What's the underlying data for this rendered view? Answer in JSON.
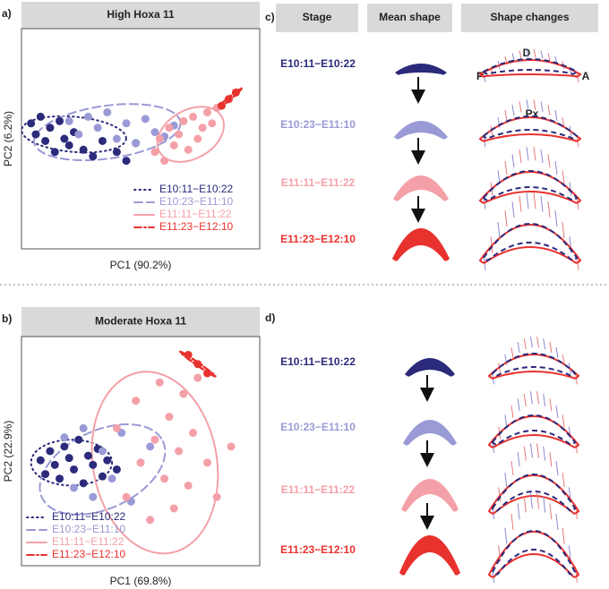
{
  "chart_data": [
    {
      "type": "scatter",
      "panel_label": "a)",
      "title": "High Hoxa 11",
      "x_label": "PC1 (90.2%)",
      "y_label": "PC2 (6.2%)",
      "xlim": [
        0,
        100
      ],
      "ylim": [
        0,
        100
      ],
      "series": [
        {
          "name": "E10:11−E10:22",
          "color": "#2b2a7b",
          "line_style": "dotted",
          "x": [
            4,
            6,
            8,
            10,
            12,
            14,
            16,
            18,
            20,
            22,
            26,
            30,
            34,
            40,
            44,
            48
          ],
          "values": [
            57,
            52,
            60,
            49,
            55,
            44,
            58,
            50,
            47,
            53,
            45,
            42,
            49,
            44,
            40,
            48
          ],
          "ellipse": [
            22,
            52,
            22,
            8,
            -5
          ]
        },
        {
          "name": "E10:23−E11:10",
          "color": "#9a9ad6",
          "line_style": "dashed",
          "x": [
            20,
            24,
            28,
            32,
            36,
            40,
            44,
            48,
            52,
            56,
            60,
            64
          ],
          "values": [
            58,
            52,
            60,
            55,
            62,
            50,
            57,
            48,
            59,
            53,
            51,
            56
          ],
          "ellipse": [
            36,
            53,
            31,
            12,
            8
          ]
        },
        {
          "name": "E11:11−E11:22",
          "color": "#f4a0a8",
          "line_style": "solid",
          "x": [
            56,
            58,
            60,
            62,
            64,
            66,
            68,
            70,
            72,
            74,
            76,
            78,
            80,
            82
          ],
          "values": [
            44,
            50,
            40,
            55,
            47,
            52,
            58,
            45,
            60,
            50,
            55,
            62,
            57,
            64
          ],
          "ellipse": [
            71,
            52,
            15,
            11,
            30
          ]
        },
        {
          "name": "E11:23−E12:10",
          "color": "#e8322e",
          "line_style": "dotdash",
          "x": [
            84,
            87,
            90
          ],
          "values": [
            65,
            68,
            71
          ],
          "ellipse": [
            87,
            68,
            7,
            0.6,
            40
          ]
        }
      ]
    },
    {
      "type": "scatter",
      "panel_label": "b)",
      "title": "Moderate Hoxa 11",
      "x_label": "PC1 (69.8%)",
      "y_label": "PC2 (22.9%)",
      "xlim": [
        0,
        100
      ],
      "ylim": [
        0,
        100
      ],
      "series": [
        {
          "name": "E10:11−E10:22",
          "color": "#2b2a7b",
          "line_style": "dotted",
          "x": [
            8,
            10,
            12,
            14,
            16,
            18,
            20,
            22,
            24,
            26,
            28,
            30,
            32,
            34,
            36,
            40
          ],
          "values": [
            46,
            40,
            50,
            44,
            38,
            52,
            47,
            42,
            55,
            36,
            48,
            44,
            51,
            39,
            46,
            42
          ],
          "ellipse": [
            21,
            45,
            17,
            10,
            0
          ]
        },
        {
          "name": "E10:23−E11:10",
          "color": "#9a9ad6",
          "line_style": "dashed",
          "x": [
            18,
            22,
            26,
            30,
            34,
            38,
            42,
            46,
            50,
            54
          ],
          "values": [
            56,
            34,
            60,
            30,
            50,
            38,
            58,
            28,
            45,
            52
          ],
          "ellipse": [
            34,
            42,
            28,
            17,
            25
          ]
        },
        {
          "name": "E11:11−E11:22",
          "color": "#f4a0a8",
          "line_style": "solid",
          "x": [
            40,
            44,
            48,
            50,
            54,
            56,
            58,
            60,
            62,
            64,
            66,
            68,
            70,
            72,
            74,
            78,
            82,
            88
          ],
          "values": [
            60,
            30,
            72,
            45,
            20,
            55,
            80,
            38,
            65,
            25,
            50,
            75,
            35,
            58,
            82,
            45,
            30,
            52
          ],
          "ellipse": [
            56,
            45,
            26,
            40,
            10
          ]
        },
        {
          "name": "E11:23−E12:10",
          "color": "#e8322e",
          "line_style": "dotdash",
          "x": [
            70,
            74,
            78
          ],
          "values": [
            92,
            88,
            84
          ],
          "ellipse": [
            74,
            88,
            9,
            0.6,
            -35
          ]
        }
      ]
    }
  ],
  "shape_panels": [
    {
      "label": "c)",
      "headers": [
        "Stage",
        "Mean shape",
        "Shape changes"
      ],
      "landmarks": [
        "D",
        "P",
        "A",
        "Px"
      ],
      "stages": [
        {
          "name": "E10:11−E10:22",
          "color": "#2b2a7b"
        },
        {
          "name": "E10:23−E11:10",
          "color": "#9a9ad6"
        },
        {
          "name": "E11:11−E11:22",
          "color": "#f4a0a8"
        },
        {
          "name": "E11:23−E12:10",
          "color": "#e8322e"
        }
      ]
    },
    {
      "label": "d)",
      "stages": [
        {
          "name": "E10:11−E10:22",
          "color": "#2b2a7b"
        },
        {
          "name": "E10:23−E11:10",
          "color": "#9a9ad6"
        },
        {
          "name": "E11:11−E11:22",
          "color": "#f4a0a8"
        },
        {
          "name": "E11:23−E12:10",
          "color": "#e8322e"
        }
      ]
    }
  ]
}
